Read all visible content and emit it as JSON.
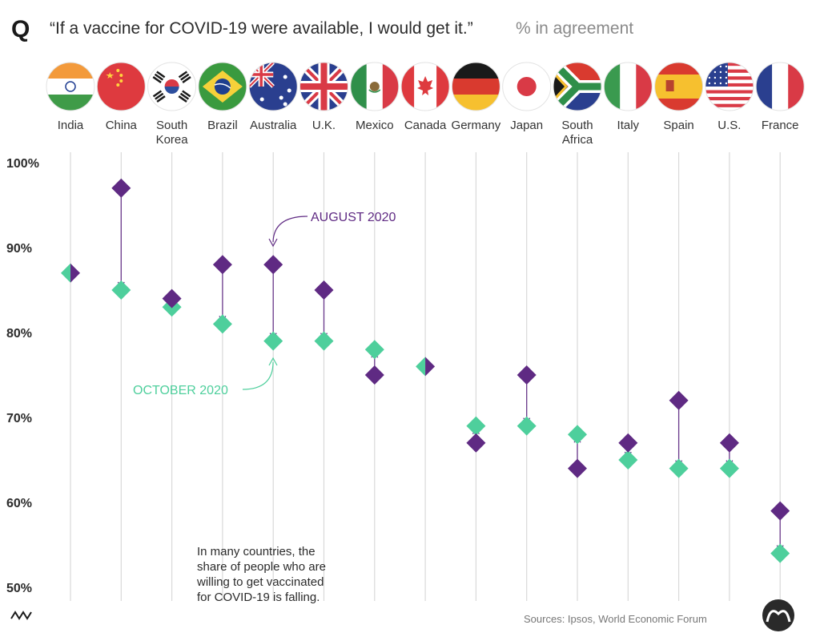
{
  "header": {
    "logo_letter": "Q",
    "title": "“If a vaccine for COVID-19 were available, I would get it.”",
    "subtitle": "% in agreement"
  },
  "colors": {
    "august": "#5f2a83",
    "october": "#4ecf9c",
    "gridline": "#d9d9d9",
    "connector": "#6b3a8c"
  },
  "chart_data": {
    "type": "dumbbell",
    "title": "“If a vaccine for COVID-19 were available, I would get it.”",
    "ylabel": "% in agreement",
    "ylim": [
      50,
      100
    ],
    "yticks": [
      "100%",
      "90%",
      "80%",
      "70%",
      "60%",
      "50%"
    ],
    "ytick_values": [
      100,
      90,
      80,
      70,
      60,
      50
    ],
    "categories": [
      {
        "line1": "India",
        "line2": "",
        "flag": "india"
      },
      {
        "line1": "China",
        "line2": "",
        "flag": "china"
      },
      {
        "line1": "South",
        "line2": "Korea",
        "flag": "south-korea"
      },
      {
        "line1": "Brazil",
        "line2": "",
        "flag": "brazil"
      },
      {
        "line1": "Australia",
        "line2": "",
        "flag": "australia"
      },
      {
        "line1": "U.K.",
        "line2": "",
        "flag": "uk"
      },
      {
        "line1": "Mexico",
        "line2": "",
        "flag": "mexico"
      },
      {
        "line1": "Canada",
        "line2": "",
        "flag": "canada"
      },
      {
        "line1": "Germany",
        "line2": "",
        "flag": "germany"
      },
      {
        "line1": "Japan",
        "line2": "",
        "flag": "japan"
      },
      {
        "line1": "South",
        "line2": "Africa",
        "flag": "south-africa"
      },
      {
        "line1": "Italy",
        "line2": "",
        "flag": "italy"
      },
      {
        "line1": "Spain",
        "line2": "",
        "flag": "spain"
      },
      {
        "line1": "U.S.",
        "line2": "",
        "flag": "us"
      },
      {
        "line1": "France",
        "line2": "",
        "flag": "france"
      }
    ],
    "series": [
      {
        "name": "AUGUST 2020",
        "values": [
          87,
          97,
          84,
          88,
          88,
          85,
          75,
          76,
          67,
          75,
          64,
          67,
          72,
          67,
          59
        ]
      },
      {
        "name": "OCTOBER 2020",
        "values": [
          87,
          85,
          83,
          81,
          79,
          79,
          78,
          76,
          69,
          69,
          68,
          65,
          64,
          64,
          54
        ]
      }
    ],
    "annotations": {
      "august_label": "AUGUST 2020",
      "october_label": "OCTOBER 2020",
      "note_lines": [
        "In many countries, the",
        "share of people who are",
        "willing to get vaccinated",
        "for COVID-19 is falling."
      ]
    },
    "source": "Sources: Ipsos, World Economic Forum"
  }
}
